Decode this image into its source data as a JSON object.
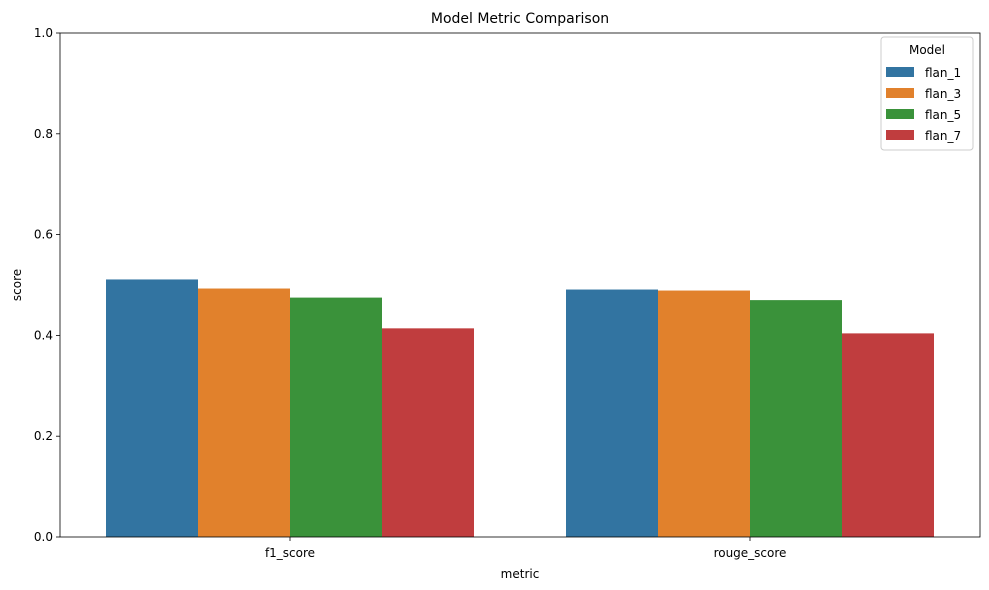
{
  "chart_data": {
    "type": "bar",
    "title": "Model Metric Comparison",
    "xlabel": "metric",
    "ylabel": "score",
    "ylim": [
      0,
      1
    ],
    "yticks": [
      "0.0",
      "0.2",
      "0.4",
      "0.6",
      "0.8",
      "1.0"
    ],
    "categories": [
      "f1_score",
      "rouge_score"
    ],
    "legend": {
      "title": "Model",
      "placement": "top-right"
    },
    "grid": false,
    "series": [
      {
        "name": "flan_1",
        "color": "#3274a1",
        "values": [
          0.511,
          0.491
        ]
      },
      {
        "name": "flan_3",
        "color": "#e1812c",
        "values": [
          0.493,
          0.489
        ]
      },
      {
        "name": "flan_5",
        "color": "#3a923a",
        "values": [
          0.475,
          0.47
        ]
      },
      {
        "name": "flan_7",
        "color": "#c03d3e",
        "values": [
          0.414,
          0.404
        ]
      }
    ]
  }
}
